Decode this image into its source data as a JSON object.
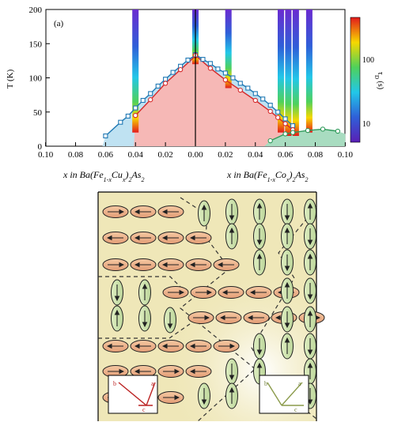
{
  "chart_data": {
    "type": "scatter",
    "panel_label": "(a)",
    "ylabel": "T (K)",
    "ylim": [
      0,
      200
    ],
    "yticks": [
      "0",
      "50",
      "100",
      "150",
      "200"
    ],
    "left_xlabel": "x in Ba(Fe1-xCux)2As2",
    "right_xlabel": "x in Ba(Fe1-xCox)2As2",
    "left_xticks": [
      "0.10",
      "0.08",
      "0.06",
      "0.04",
      "0.02",
      "0.00"
    ],
    "right_xticks": [
      "0.02",
      "0.04",
      "0.06",
      "0.08",
      "0.10"
    ],
    "colorbar_label": "τD (s)",
    "colorbar_ticks": [
      "100",
      "10"
    ],
    "cu_structural": [
      {
        "x": 0.0,
        "y": 133
      },
      {
        "x": 0.005,
        "y": 126
      },
      {
        "x": 0.01,
        "y": 117
      },
      {
        "x": 0.015,
        "y": 108
      },
      {
        "x": 0.02,
        "y": 98
      },
      {
        "x": 0.025,
        "y": 88
      },
      {
        "x": 0.03,
        "y": 77
      },
      {
        "x": 0.035,
        "y": 67
      },
      {
        "x": 0.04,
        "y": 56
      },
      {
        "x": 0.045,
        "y": 44
      },
      {
        "x": 0.05,
        "y": 35
      },
      {
        "x": 0.06,
        "y": 15
      }
    ],
    "cu_magnetic": [
      {
        "x": 0.0,
        "y": 132
      },
      {
        "x": 0.01,
        "y": 112
      },
      {
        "x": 0.02,
        "y": 92
      },
      {
        "x": 0.03,
        "y": 68
      },
      {
        "x": 0.04,
        "y": 45
      }
    ],
    "co_structural": [
      {
        "x": 0.0,
        "y": 134
      },
      {
        "x": 0.005,
        "y": 127
      },
      {
        "x": 0.01,
        "y": 121
      },
      {
        "x": 0.015,
        "y": 113
      },
      {
        "x": 0.02,
        "y": 107
      },
      {
        "x": 0.025,
        "y": 100
      },
      {
        "x": 0.03,
        "y": 92
      },
      {
        "x": 0.035,
        "y": 85
      },
      {
        "x": 0.04,
        "y": 77
      },
      {
        "x": 0.045,
        "y": 69
      },
      {
        "x": 0.05,
        "y": 60
      },
      {
        "x": 0.055,
        "y": 50
      },
      {
        "x": 0.06,
        "y": 40
      },
      {
        "x": 0.065,
        "y": 30
      }
    ],
    "co_magnetic": [
      {
        "x": 0.0,
        "y": 133
      },
      {
        "x": 0.01,
        "y": 114
      },
      {
        "x": 0.02,
        "y": 97
      },
      {
        "x": 0.03,
        "y": 82
      },
      {
        "x": 0.04,
        "y": 67
      },
      {
        "x": 0.05,
        "y": 51
      },
      {
        "x": 0.055,
        "y": 42
      },
      {
        "x": 0.06,
        "y": 33
      },
      {
        "x": 0.065,
        "y": 24
      }
    ],
    "co_superconducting": [
      {
        "x": 0.05,
        "y": 8
      },
      {
        "x": 0.06,
        "y": 18
      },
      {
        "x": 0.065,
        "y": 20
      },
      {
        "x": 0.075,
        "y": 23
      },
      {
        "x": 0.085,
        "y": 25
      },
      {
        "x": 0.095,
        "y": 22
      }
    ],
    "relaxation_stripes": [
      {
        "side": "cu",
        "x": 0.04,
        "ymin": 20,
        "ymax": 200
      },
      {
        "side": "co",
        "x": 0.0,
        "ymin": 120,
        "ymax": 200
      },
      {
        "side": "co",
        "x": 0.022,
        "ymin": 85,
        "ymax": 200
      },
      {
        "side": "co",
        "x": 0.057,
        "ymin": 20,
        "ymax": 200
      },
      {
        "side": "co",
        "x": 0.062,
        "ymin": 15,
        "ymax": 200
      },
      {
        "side": "co",
        "x": 0.067,
        "ymin": 15,
        "ymax": 200
      },
      {
        "side": "co",
        "x": 0.076,
        "ymin": 20,
        "ymax": 200
      }
    ]
  },
  "domains": {
    "horizontal_arrow_rows": [
      {
        "row": 0,
        "count": 3
      },
      {
        "row": 1,
        "count": 4
      },
      {
        "row": 2,
        "count": 5
      },
      {
        "row": 3,
        "count": 5
      },
      {
        "row": 4,
        "count": 5
      },
      {
        "row": 5,
        "count": 5
      },
      {
        "row": 6,
        "count": 4
      },
      {
        "row": 7,
        "count": 3
      }
    ],
    "vertical_arrow_columns": [
      {
        "col": 0,
        "count": 3
      },
      {
        "col": 1,
        "count": 5
      },
      {
        "col": 2,
        "count": 6
      },
      {
        "col": 3,
        "count": 6
      },
      {
        "col": 4,
        "count": 5
      }
    ],
    "left_inset_axes": [
      "b",
      "a",
      "c"
    ],
    "right_inset_axes": [
      "b",
      "a",
      "c"
    ]
  }
}
